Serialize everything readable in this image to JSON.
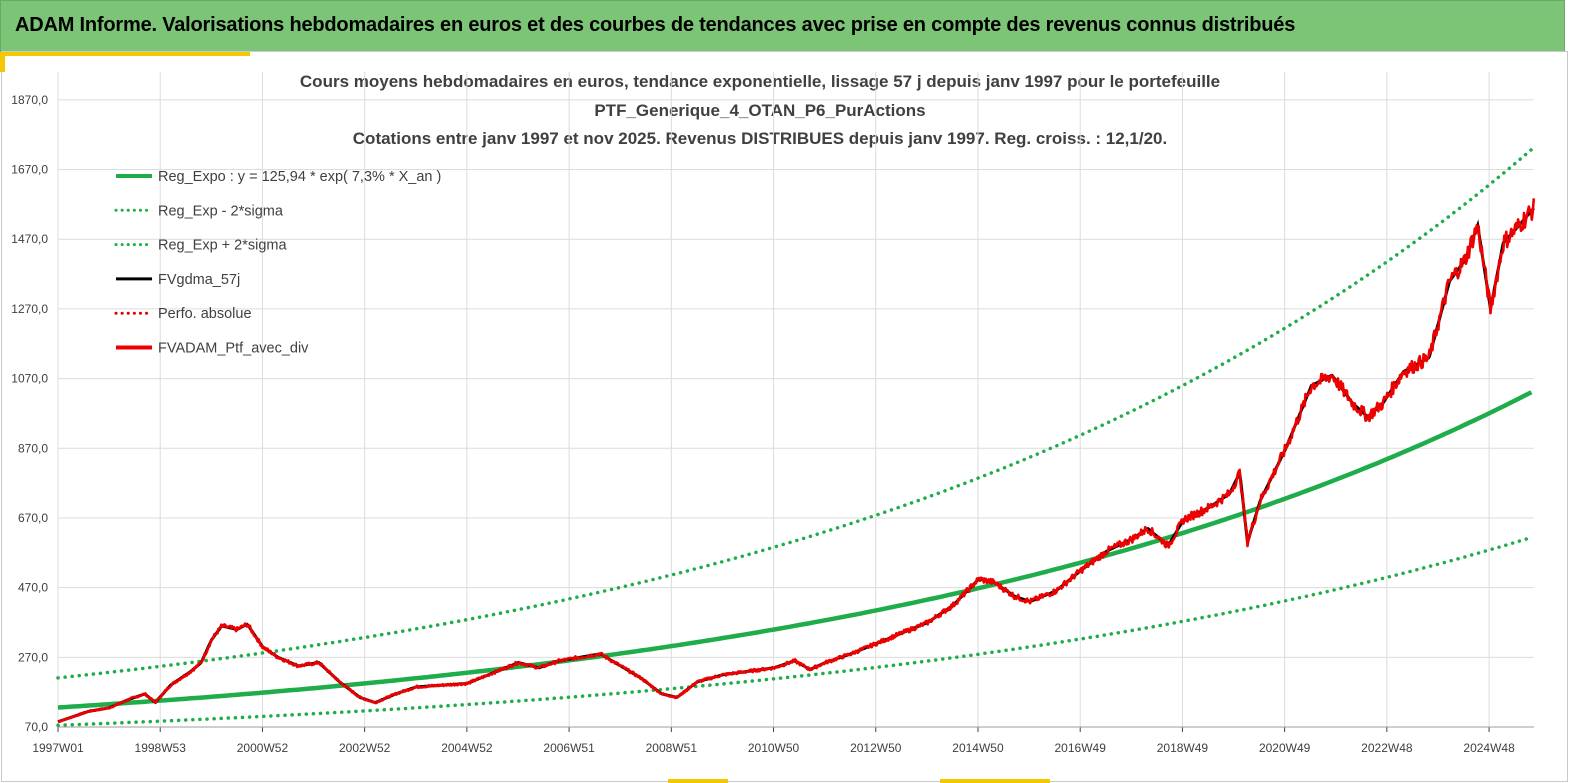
{
  "banner": {
    "title": "ADAM Informe. Valorisations hebdomadaires en euros et des courbes de tendances avec prise en compte des revenus connus distribués"
  },
  "colors": {
    "banner_bg": "#7cc576",
    "accent": "#f3c800",
    "reg_expo": "#1fad4b",
    "sigma_lines": "#1fad4b",
    "fvgdma": "#000000",
    "perfo": "#e00000",
    "fvadam": "#ee0000",
    "grid": "#dcdcdc"
  },
  "chart_data": {
    "type": "line",
    "title_lines": [
      "Cours moyens hebdomadaires  en euros, tendance exponentielle, lissage 57 j depuis janv 1997 pour le portefeuille",
      "PTF_Generique_4_OTAN_P6_PurActions",
      "Cotations  entre janv 1997 et nov 2025. Revenus DISTRIBUES depuis janv 1997. Reg. croiss. : 12,1/20."
    ],
    "x_ticks": [
      "1997W01",
      "1998W53",
      "2000W52",
      "2002W52",
      "2004W52",
      "2006W51",
      "2008W51",
      "2010W50",
      "2012W50",
      "2014W50",
      "2016W49",
      "2018W49",
      "2020W49",
      "2022W48",
      "2024W48"
    ],
    "y_ticks": [
      "70,0",
      "270,0",
      "470,0",
      "670,0",
      "870,0",
      "1070,0",
      "1270,0",
      "1470,0",
      "1670,0",
      "1870,0"
    ],
    "ylim": [
      70,
      1950
    ],
    "xlim": [
      1997.0,
      2025.85
    ],
    "legend_position": "top-left",
    "grid": true,
    "series": [
      {
        "name": "Reg_Expo : y = 125,94 * exp( 7,3% *  X_an )",
        "style": "solid-thick",
        "color": "#1fad4b",
        "function": {
          "a": 125.94,
          "rate": 0.073
        }
      },
      {
        "name": "Reg_Exp - 2*sigma",
        "style": "dotted",
        "color": "#1fad4b",
        "function": {
          "a": 75.0,
          "rate": 0.073
        }
      },
      {
        "name": "Reg_Exp + 2*sigma",
        "style": "dotted",
        "color": "#1fad4b",
        "function": {
          "a": 211.0,
          "rate": 0.073
        }
      },
      {
        "name": "FVgdma_57j",
        "style": "solid",
        "color": "#000000"
      },
      {
        "name": "Perfo. absolue",
        "style": "dotted",
        "color": "#e00000"
      },
      {
        "name": "FVADAM_Ptf_avec_div",
        "style": "solid-thick",
        "color": "#ee0000"
      }
    ],
    "price_points": {
      "x": [
        1997.0,
        1997.3,
        1997.6,
        1998.0,
        1998.4,
        1998.7,
        1998.9,
        1999.2,
        1999.6,
        1999.8,
        2000.0,
        2000.2,
        2000.5,
        2000.7,
        2001.0,
        2001.3,
        2001.7,
        2002.1,
        2002.5,
        2002.9,
        2003.2,
        2003.6,
        2004.0,
        2004.5,
        2005.0,
        2005.5,
        2006.0,
        2006.4,
        2006.8,
        2007.2,
        2007.6,
        2008.0,
        2008.4,
        2008.8,
        2009.1,
        2009.5,
        2010.0,
        2010.5,
        2011.0,
        2011.4,
        2011.7,
        2012.0,
        2012.5,
        2013.0,
        2013.5,
        2014.0,
        2014.5,
        2015.0,
        2015.3,
        2015.7,
        2016.0,
        2016.5,
        2017.0,
        2017.5,
        2018.0,
        2018.3,
        2018.7,
        2019.0,
        2019.5,
        2019.9,
        2020.1,
        2020.25,
        2020.5,
        2021.0,
        2021.5,
        2021.9,
        2022.3,
        2022.6,
        2022.9,
        2023.3,
        2023.8,
        2024.2,
        2024.5,
        2024.75,
        2025.0,
        2025.25,
        2025.5,
        2025.85
      ],
      "y": [
        85,
        100,
        115,
        125,
        150,
        165,
        140,
        190,
        230,
        255,
        320,
        360,
        350,
        365,
        300,
        270,
        245,
        255,
        200,
        155,
        140,
        165,
        185,
        190,
        195,
        225,
        255,
        240,
        260,
        270,
        280,
        245,
        210,
        165,
        155,
        200,
        220,
        230,
        240,
        260,
        235,
        255,
        280,
        310,
        340,
        370,
        420,
        495,
        485,
        445,
        430,
        460,
        520,
        575,
        610,
        640,
        590,
        665,
        700,
        740,
        800,
        600,
        720,
        870,
        1050,
        1080,
        1000,
        960,
        1000,
        1090,
        1130,
        1350,
        1410,
        1510,
        1270,
        1460,
        1500,
        1560
      ]
    }
  }
}
